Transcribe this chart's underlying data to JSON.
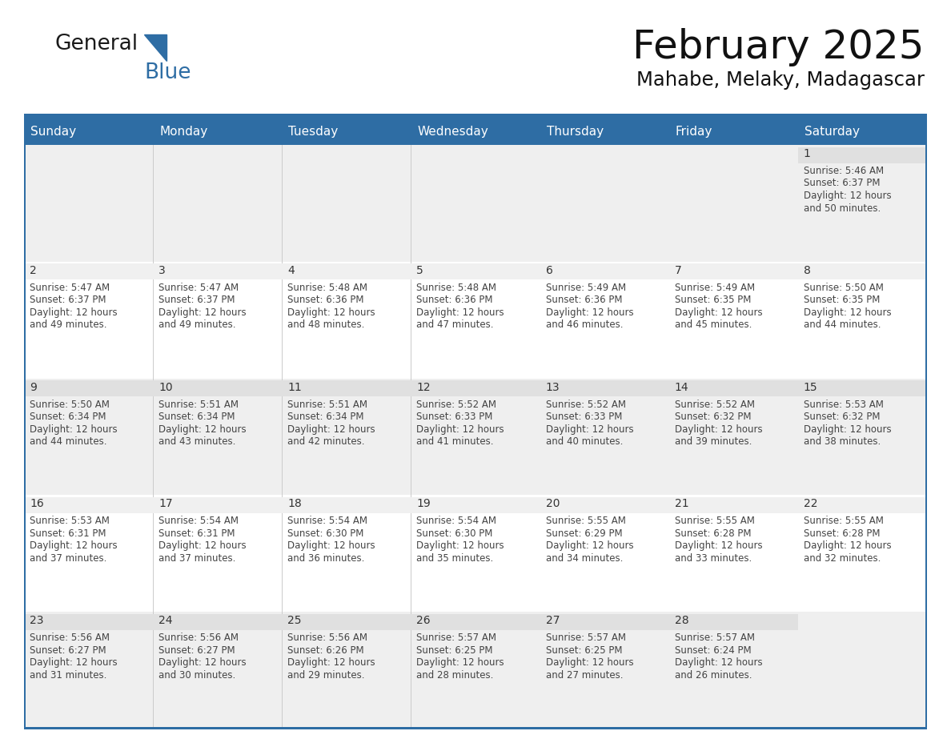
{
  "title": "February 2025",
  "subtitle": "Mahabe, Melaky, Madagascar",
  "header_bg": "#2E6DA4",
  "header_text_color": "#FFFFFF",
  "cell_bg_odd": "#EFEFEF",
  "cell_bg_even": "#FFFFFF",
  "day_strip_bg_odd": "#E0E0E0",
  "day_strip_bg_even": "#F0F0F0",
  "border_color": "#2E6DA4",
  "text_color": "#444444",
  "day_number_color": "#333333",
  "days_of_week": [
    "Sunday",
    "Monday",
    "Tuesday",
    "Wednesday",
    "Thursday",
    "Friday",
    "Saturday"
  ],
  "calendar_data": [
    [
      null,
      null,
      null,
      null,
      null,
      null,
      1
    ],
    [
      2,
      3,
      4,
      5,
      6,
      7,
      8
    ],
    [
      9,
      10,
      11,
      12,
      13,
      14,
      15
    ],
    [
      16,
      17,
      18,
      19,
      20,
      21,
      22
    ],
    [
      23,
      24,
      25,
      26,
      27,
      28,
      null
    ]
  ],
  "sunrise_data": {
    "1": "5:46 AM",
    "2": "5:47 AM",
    "3": "5:47 AM",
    "4": "5:48 AM",
    "5": "5:48 AM",
    "6": "5:49 AM",
    "7": "5:49 AM",
    "8": "5:50 AM",
    "9": "5:50 AM",
    "10": "5:51 AM",
    "11": "5:51 AM",
    "12": "5:52 AM",
    "13": "5:52 AM",
    "14": "5:52 AM",
    "15": "5:53 AM",
    "16": "5:53 AM",
    "17": "5:54 AM",
    "18": "5:54 AM",
    "19": "5:54 AM",
    "20": "5:55 AM",
    "21": "5:55 AM",
    "22": "5:55 AM",
    "23": "5:56 AM",
    "24": "5:56 AM",
    "25": "5:56 AM",
    "26": "5:57 AM",
    "27": "5:57 AM",
    "28": "5:57 AM"
  },
  "sunset_data": {
    "1": "6:37 PM",
    "2": "6:37 PM",
    "3": "6:37 PM",
    "4": "6:36 PM",
    "5": "6:36 PM",
    "6": "6:36 PM",
    "7": "6:35 PM",
    "8": "6:35 PM",
    "9": "6:34 PM",
    "10": "6:34 PM",
    "11": "6:34 PM",
    "12": "6:33 PM",
    "13": "6:33 PM",
    "14": "6:32 PM",
    "15": "6:32 PM",
    "16": "6:31 PM",
    "17": "6:31 PM",
    "18": "6:30 PM",
    "19": "6:30 PM",
    "20": "6:29 PM",
    "21": "6:28 PM",
    "22": "6:28 PM",
    "23": "6:27 PM",
    "24": "6:27 PM",
    "25": "6:26 PM",
    "26": "6:25 PM",
    "27": "6:25 PM",
    "28": "6:24 PM"
  },
  "daylight_data": {
    "1": "12 hours and 50 minutes.",
    "2": "12 hours and 49 minutes.",
    "3": "12 hours and 49 minutes.",
    "4": "12 hours and 48 minutes.",
    "5": "12 hours and 47 minutes.",
    "6": "12 hours and 46 minutes.",
    "7": "12 hours and 45 minutes.",
    "8": "12 hours and 44 minutes.",
    "9": "12 hours and 44 minutes.",
    "10": "12 hours and 43 minutes.",
    "11": "12 hours and 42 minutes.",
    "12": "12 hours and 41 minutes.",
    "13": "12 hours and 40 minutes.",
    "14": "12 hours and 39 minutes.",
    "15": "12 hours and 38 minutes.",
    "16": "12 hours and 37 minutes.",
    "17": "12 hours and 37 minutes.",
    "18": "12 hours and 36 minutes.",
    "19": "12 hours and 35 minutes.",
    "20": "12 hours and 34 minutes.",
    "21": "12 hours and 33 minutes.",
    "22": "12 hours and 32 minutes.",
    "23": "12 hours and 31 minutes.",
    "24": "12 hours and 30 minutes.",
    "25": "12 hours and 29 minutes.",
    "26": "12 hours and 28 minutes.",
    "27": "12 hours and 27 minutes.",
    "28": "12 hours and 26 minutes."
  },
  "logo_color_general": "#1a1a1a",
  "logo_color_blue": "#2E6DA4",
  "logo_triangle_color": "#2E6DA4",
  "header_fontsize": 11,
  "day_num_fontsize": 10,
  "cell_text_fontsize": 8.5
}
